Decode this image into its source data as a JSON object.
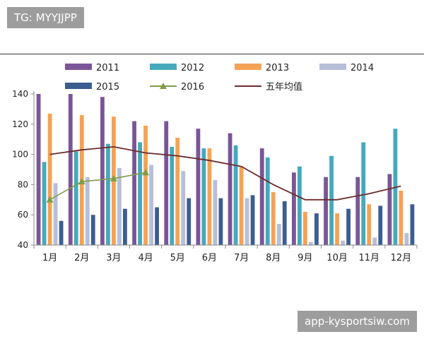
{
  "watermarks": {
    "top": "TG: MYYJJPP",
    "bottom": "app-kysportsiw.com"
  },
  "chart_data": {
    "type": "bar",
    "categories": [
      "1月",
      "2月",
      "3月",
      "4月",
      "5月",
      "6月",
      "7月",
      "8月",
      "9月",
      "10月",
      "11月",
      "12月"
    ],
    "ylim": [
      40,
      140
    ],
    "yticks": [
      40,
      60,
      80,
      100,
      120,
      140
    ],
    "series": [
      {
        "name": "2011",
        "type": "bar",
        "color": "#7b5597",
        "values": [
          140,
          140,
          138,
          122,
          122,
          117,
          114,
          104,
          88,
          85,
          85,
          87
        ]
      },
      {
        "name": "2012",
        "type": "bar",
        "color": "#45a9bd",
        "values": [
          95,
          102,
          107,
          108,
          105,
          104,
          106,
          98,
          92,
          99,
          108,
          117
        ]
      },
      {
        "name": "2013",
        "type": "bar",
        "color": "#f4a256",
        "values": [
          127,
          126,
          125,
          119,
          111,
          104,
          92,
          75,
          62,
          61,
          67,
          76
        ]
      },
      {
        "name": "2014",
        "type": "bar",
        "color": "#b7bed8",
        "values": [
          81,
          85,
          91,
          93,
          89,
          83,
          71,
          54,
          42,
          43,
          45,
          48
        ]
      },
      {
        "name": "2015",
        "type": "bar",
        "color": "#3c5e8f",
        "values": [
          56,
          60,
          64,
          65,
          71,
          71,
          73,
          69,
          61,
          64,
          66,
          67
        ]
      },
      {
        "name": "2016",
        "type": "line-marker",
        "color": "#7f9c4a",
        "values": [
          70,
          82,
          84,
          88,
          null,
          null,
          null,
          null,
          null,
          null,
          null,
          null
        ]
      },
      {
        "name": "五年均值",
        "type": "line",
        "color": "#6b2d2d",
        "values": [
          100,
          103,
          105,
          101,
          99,
          96,
          92,
          80,
          70,
          70,
          74,
          79
        ]
      }
    ],
    "legend": "top",
    "grid": false
  }
}
